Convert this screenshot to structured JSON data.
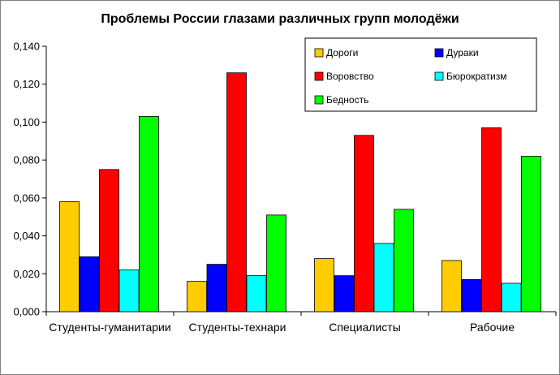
{
  "chart_data": {
    "type": "bar",
    "title": "Проблемы России глазами различных групп молодёжи",
    "xlabel": "",
    "ylabel": "",
    "ylim": [
      0,
      0.14
    ],
    "yticks": [
      "0,000",
      "0,020",
      "0,040",
      "0,060",
      "0,080",
      "0,100",
      "0,120",
      "0,140"
    ],
    "grid": false,
    "legend_position": "top-right",
    "categories": [
      "Студенты-гуманитарии",
      "Студенты-технари",
      "Специалисты",
      "Рабочие"
    ],
    "series": [
      {
        "name": "Дороги",
        "color": "#ffcc00",
        "values": [
          0.058,
          0.016,
          0.028,
          0.027
        ]
      },
      {
        "name": "Дураки",
        "color": "#0000ff",
        "values": [
          0.029,
          0.025,
          0.019,
          0.017
        ]
      },
      {
        "name": "Воровство",
        "color": "#ff0000",
        "values": [
          0.075,
          0.126,
          0.093,
          0.097
        ]
      },
      {
        "name": "Бюрократизм",
        "color": "#00ffff",
        "values": [
          0.022,
          0.019,
          0.036,
          0.015
        ]
      },
      {
        "name": "Бедность",
        "color": "#00ff00",
        "values": [
          0.103,
          0.051,
          0.054,
          0.082
        ]
      }
    ]
  }
}
